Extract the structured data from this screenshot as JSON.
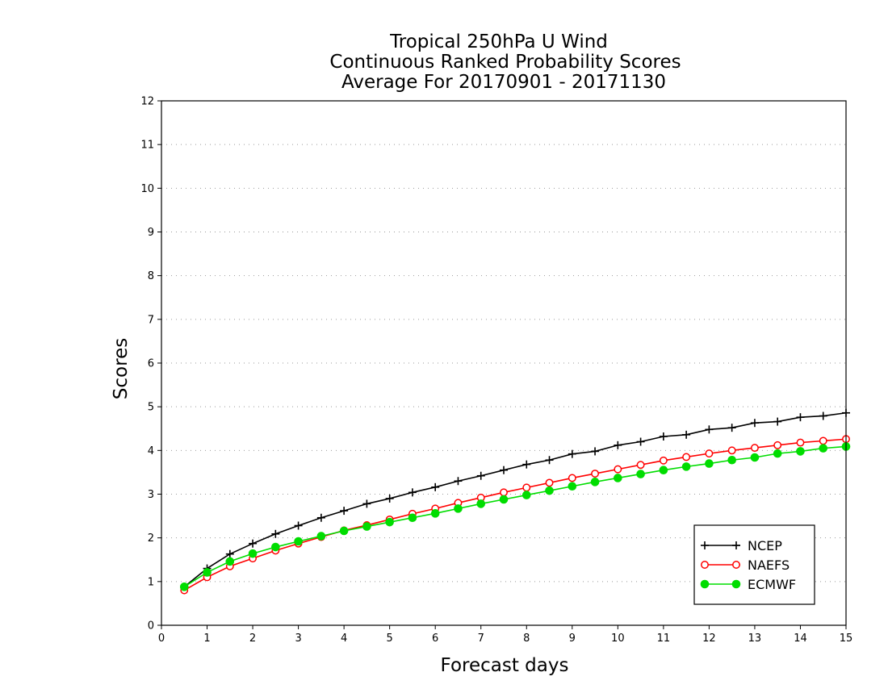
{
  "chart_data": {
    "type": "line",
    "title": [
      "Tropical 250hPa U Wind",
      "Continuous Ranked Probability Scores",
      "Average For 20170901 - 20171130"
    ],
    "xlabel": "Forecast days",
    "ylabel": "Scores",
    "xlim": [
      0,
      15
    ],
    "ylim": [
      0,
      12
    ],
    "xticks": [
      "0",
      "1",
      "2",
      "3",
      "4",
      "5",
      "6",
      "7",
      "8",
      "9",
      "10",
      "11",
      "12",
      "13",
      "14",
      "15"
    ],
    "yticks": [
      "0",
      "1",
      "2",
      "3",
      "4",
      "5",
      "6",
      "7",
      "8",
      "9",
      "10",
      "11",
      "12"
    ],
    "grid": "horizontal dotted",
    "legend_position": "bottom-right",
    "x": [
      0.5,
      1,
      1.5,
      2,
      2.5,
      3,
      3.5,
      4,
      4.5,
      5,
      5.5,
      6,
      6.5,
      7,
      7.5,
      8,
      8.5,
      9,
      9.5,
      10,
      10.5,
      11,
      11.5,
      12,
      12.5,
      13,
      13.5,
      14,
      14.5,
      15
    ],
    "series": [
      {
        "name": "NCEP",
        "color": "#000000",
        "marker": "plus",
        "values": [
          0.88,
          1.3,
          1.63,
          1.87,
          2.09,
          2.28,
          2.46,
          2.62,
          2.78,
          2.9,
          3.04,
          3.16,
          3.3,
          3.42,
          3.55,
          3.68,
          3.78,
          3.92,
          3.98,
          4.12,
          4.2,
          4.32,
          4.36,
          4.48,
          4.52,
          4.63,
          4.66,
          4.76,
          4.79,
          4.86
        ]
      },
      {
        "name": "NAEFS",
        "color": "#ff0000",
        "marker": "open-circle",
        "values": [
          0.8,
          1.1,
          1.35,
          1.53,
          1.71,
          1.87,
          2.02,
          2.17,
          2.29,
          2.42,
          2.55,
          2.67,
          2.8,
          2.92,
          3.04,
          3.15,
          3.26,
          3.37,
          3.47,
          3.57,
          3.67,
          3.77,
          3.85,
          3.93,
          4.0,
          4.06,
          4.12,
          4.18,
          4.22,
          4.26
        ]
      },
      {
        "name": "ECMWF",
        "color": "#00dd00",
        "marker": "filled-circle",
        "values": [
          0.88,
          1.21,
          1.46,
          1.64,
          1.79,
          1.92,
          2.04,
          2.16,
          2.26,
          2.36,
          2.46,
          2.56,
          2.67,
          2.78,
          2.88,
          2.98,
          3.08,
          3.18,
          3.28,
          3.37,
          3.46,
          3.55,
          3.63,
          3.7,
          3.78,
          3.84,
          3.93,
          3.98,
          4.05,
          4.09
        ]
      }
    ]
  }
}
